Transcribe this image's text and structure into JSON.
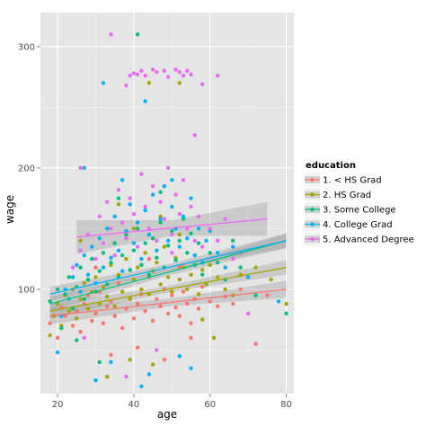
{
  "chart_data": {
    "type": "scatter",
    "xlabel": "age",
    "ylabel": "wage",
    "xlim": [
      15.5,
      82
    ],
    "ylim": [
      14,
      328
    ],
    "x_ticks": [
      20,
      40,
      60,
      80
    ],
    "y_ticks": [
      100,
      200,
      300
    ],
    "grid": true,
    "legend": {
      "title": "education",
      "placement": "right"
    },
    "series": [
      {
        "name": "1. < HS Grad",
        "color": "#F8766D",
        "fit": {
          "x": [
            18,
            80
          ],
          "y": [
            78,
            100
          ],
          "ci": 7
        },
        "points": [
          [
            18,
            72
          ],
          [
            20,
            60
          ],
          [
            21,
            85
          ],
          [
            22,
            78
          ],
          [
            23,
            92
          ],
          [
            24,
            70
          ],
          [
            25,
            82
          ],
          [
            26,
            65
          ],
          [
            27,
            88
          ],
          [
            28,
            95
          ],
          [
            29,
            74
          ],
          [
            30,
            80
          ],
          [
            31,
            98
          ],
          [
            32,
            72
          ],
          [
            33,
            86
          ],
          [
            34,
            90
          ],
          [
            35,
            78
          ],
          [
            36,
            105
          ],
          [
            37,
            68
          ],
          [
            38,
            84
          ],
          [
            39,
            92
          ],
          [
            40,
            76
          ],
          [
            41,
            88
          ],
          [
            42,
            96
          ],
          [
            43,
            82
          ],
          [
            44,
            110
          ],
          [
            45,
            74
          ],
          [
            46,
            92
          ],
          [
            47,
            86
          ],
          [
            48,
            100
          ],
          [
            49,
            80
          ],
          [
            50,
            95
          ],
          [
            51,
            85
          ],
          [
            52,
            78
          ],
          [
            53,
            98
          ],
          [
            54,
            88
          ],
          [
            55,
            72
          ],
          [
            56,
            92
          ],
          [
            57,
            84
          ],
          [
            58,
            102
          ],
          [
            60,
            90
          ],
          [
            62,
            86
          ],
          [
            64,
            94
          ],
          [
            66,
            88
          ],
          [
            68,
            100
          ],
          [
            70,
            80
          ],
          [
            72,
            55
          ],
          [
            75,
            95
          ],
          [
            34,
            46
          ],
          [
            41,
            52
          ],
          [
            48,
            42
          ],
          [
            55,
            60
          ],
          [
            30,
            118
          ],
          [
            44,
            125
          ],
          [
            52,
            118
          ]
        ]
      },
      {
        "name": "2. HS Grad",
        "color": "#A3A500",
        "fit": {
          "x": [
            18,
            80
          ],
          "y": [
            82,
            118
          ],
          "ci": 6
        },
        "points": [
          [
            18,
            62
          ],
          [
            19,
            78
          ],
          [
            20,
            88
          ],
          [
            21,
            70
          ],
          [
            22,
            95
          ],
          [
            23,
            82
          ],
          [
            24,
            100
          ],
          [
            25,
            76
          ],
          [
            26,
            92
          ],
          [
            27,
            105
          ],
          [
            28,
            84
          ],
          [
            29,
            98
          ],
          [
            30,
            110
          ],
          [
            31,
            88
          ],
          [
            32,
            102
          ],
          [
            33,
            94
          ],
          [
            34,
            120
          ],
          [
            35,
            86
          ],
          [
            36,
            112
          ],
          [
            37,
            98
          ],
          [
            38,
            125
          ],
          [
            39,
            92
          ],
          [
            40,
            108
          ],
          [
            41,
            118
          ],
          [
            42,
            100
          ],
          [
            43,
            130
          ],
          [
            44,
            96
          ],
          [
            45,
            115
          ],
          [
            46,
            122
          ],
          [
            47,
            104
          ],
          [
            48,
            135
          ],
          [
            49,
            110
          ],
          [
            50,
            98
          ],
          [
            51,
            126
          ],
          [
            52,
            108
          ],
          [
            53,
            118
          ],
          [
            54,
            100
          ],
          [
            55,
            112
          ],
          [
            56,
            128
          ],
          [
            57,
            96
          ],
          [
            58,
            116
          ],
          [
            59,
            104
          ],
          [
            60,
            120
          ],
          [
            62,
            110
          ],
          [
            64,
            100
          ],
          [
            66,
            95
          ],
          [
            68,
            112
          ],
          [
            72,
            118
          ],
          [
            76,
            108
          ],
          [
            80,
            88
          ],
          [
            33,
            28
          ],
          [
            39,
            42
          ],
          [
            45,
            38
          ],
          [
            26,
            140
          ],
          [
            40,
            150
          ],
          [
            52,
            145
          ],
          [
            61,
            60
          ],
          [
            58,
            75
          ],
          [
            47,
            160
          ],
          [
            44,
            270
          ],
          [
            52,
            270
          ],
          [
            36,
            170
          ]
        ]
      },
      {
        "name": "3. Some College",
        "color": "#00BF7D",
        "fit": {
          "x": [
            18,
            80
          ],
          "y": [
            88,
            140
          ],
          "ci": 6
        },
        "points": [
          [
            18,
            90
          ],
          [
            20,
            100
          ],
          [
            21,
            68
          ],
          [
            22,
            96
          ],
          [
            23,
            110
          ],
          [
            24,
            84
          ],
          [
            25,
            102
          ],
          [
            26,
            118
          ],
          [
            27,
            92
          ],
          [
            28,
            108
          ],
          [
            29,
            125
          ],
          [
            30,
            98
          ],
          [
            31,
            115
          ],
          [
            32,
            130
          ],
          [
            33,
            104
          ],
          [
            34,
            122
          ],
          [
            35,
            138
          ],
          [
            36,
            110
          ],
          [
            37,
            128
          ],
          [
            38,
            145
          ],
          [
            39,
            116
          ],
          [
            40,
            132
          ],
          [
            41,
            150
          ],
          [
            42,
            120
          ],
          [
            43,
            138
          ],
          [
            44,
            112
          ],
          [
            45,
            142
          ],
          [
            46,
            126
          ],
          [
            47,
            155
          ],
          [
            48,
            118
          ],
          [
            49,
            136
          ],
          [
            50,
            148
          ],
          [
            51,
            124
          ],
          [
            52,
            140
          ],
          [
            53,
            158
          ],
          [
            54,
            130
          ],
          [
            55,
            146
          ],
          [
            56,
            120
          ],
          [
            57,
            138
          ],
          [
            58,
            112
          ],
          [
            60,
            130
          ],
          [
            62,
            122
          ],
          [
            64,
            108
          ],
          [
            66,
            140
          ],
          [
            68,
            118
          ],
          [
            72,
            95
          ],
          [
            80,
            80
          ],
          [
            41,
            310
          ],
          [
            31,
            40
          ],
          [
            36,
            175
          ],
          [
            47,
            180
          ],
          [
            25,
            58
          ]
        ]
      },
      {
        "name": "4. College Grad",
        "color": "#00B0F6",
        "fit": {
          "x": [
            18,
            80
          ],
          "y": [
            96,
            140
          ],
          "ci": 6
        },
        "points": [
          [
            21,
            78
          ],
          [
            22,
            100
          ],
          [
            23,
            92
          ],
          [
            24,
            110
          ],
          [
            25,
            120
          ],
          [
            26,
            98
          ],
          [
            27,
            128
          ],
          [
            28,
            112
          ],
          [
            29,
            135
          ],
          [
            30,
            105
          ],
          [
            31,
            142
          ],
          [
            32,
            118
          ],
          [
            33,
            150
          ],
          [
            34,
            126
          ],
          [
            35,
            160
          ],
          [
            36,
            132
          ],
          [
            37,
            115
          ],
          [
            38,
            148
          ],
          [
            39,
            170
          ],
          [
            40,
            138
          ],
          [
            41,
            155
          ],
          [
            42,
            125
          ],
          [
            43,
            165
          ],
          [
            44,
            145
          ],
          [
            45,
            178
          ],
          [
            46,
            132
          ],
          [
            47,
            158
          ],
          [
            48,
            185
          ],
          [
            49,
            140
          ],
          [
            50,
            168
          ],
          [
            51,
            150
          ],
          [
            52,
            135
          ],
          [
            53,
            160
          ],
          [
            54,
            142
          ],
          [
            55,
            175
          ],
          [
            56,
            128
          ],
          [
            57,
            150
          ],
          [
            58,
            122
          ],
          [
            59,
            140
          ],
          [
            60,
            148
          ],
          [
            62,
            130
          ],
          [
            64,
            118
          ],
          [
            66,
            135
          ],
          [
            70,
            110
          ],
          [
            78,
            90
          ],
          [
            32,
            270
          ],
          [
            43,
            255
          ],
          [
            34,
            40
          ],
          [
            44,
            30
          ],
          [
            52,
            45
          ],
          [
            42,
            20
          ],
          [
            30,
            25
          ],
          [
            55,
            35
          ],
          [
            20,
            48
          ],
          [
            27,
            200
          ],
          [
            37,
            190
          ],
          [
            50,
            190
          ]
        ]
      },
      {
        "name": "5. Advanced Degree",
        "color": "#E76BF3",
        "fit": {
          "x": [
            25,
            75
          ],
          "y": [
            143,
            158
          ],
          "ci": 14
        },
        "points": [
          [
            24,
            118
          ],
          [
            26,
            132
          ],
          [
            28,
            145
          ],
          [
            30,
            125
          ],
          [
            31,
            160
          ],
          [
            32,
            138
          ],
          [
            33,
            172
          ],
          [
            34,
            150
          ],
          [
            35,
            128
          ],
          [
            36,
            182
          ],
          [
            37,
            155
          ],
          [
            38,
            142
          ],
          [
            39,
            175
          ],
          [
            40,
            162
          ],
          [
            41,
            135
          ],
          [
            42,
            195
          ],
          [
            43,
            168
          ],
          [
            44,
            150
          ],
          [
            45,
            185
          ],
          [
            46,
            140
          ],
          [
            47,
            172
          ],
          [
            48,
            158
          ],
          [
            49,
            200
          ],
          [
            50,
            145
          ],
          [
            51,
            178
          ],
          [
            52,
            162
          ],
          [
            53,
            190
          ],
          [
            54,
            150
          ],
          [
            55,
            168
          ],
          [
            56,
            140
          ],
          [
            57,
            160
          ],
          [
            58,
            135
          ],
          [
            60,
            150
          ],
          [
            62,
            140
          ],
          [
            64,
            158
          ],
          [
            66,
            125
          ],
          [
            68,
            130
          ],
          [
            70,
            80
          ],
          [
            34,
            310
          ],
          [
            39,
            276
          ],
          [
            40,
            278
          ],
          [
            41,
            277
          ],
          [
            42,
            280
          ],
          [
            43,
            276
          ],
          [
            45,
            281
          ],
          [
            46,
            279
          ],
          [
            48,
            280
          ],
          [
            49,
            275
          ],
          [
            51,
            281
          ],
          [
            52,
            279
          ],
          [
            53,
            276
          ],
          [
            54,
            280
          ],
          [
            55,
            277
          ],
          [
            58,
            269
          ],
          [
            62,
            276
          ],
          [
            38,
            268
          ],
          [
            56,
            227
          ],
          [
            27,
            60
          ],
          [
            38,
            28
          ],
          [
            46,
            50
          ],
          [
            26,
            200
          ],
          [
            50,
            130
          ]
        ]
      }
    ]
  }
}
